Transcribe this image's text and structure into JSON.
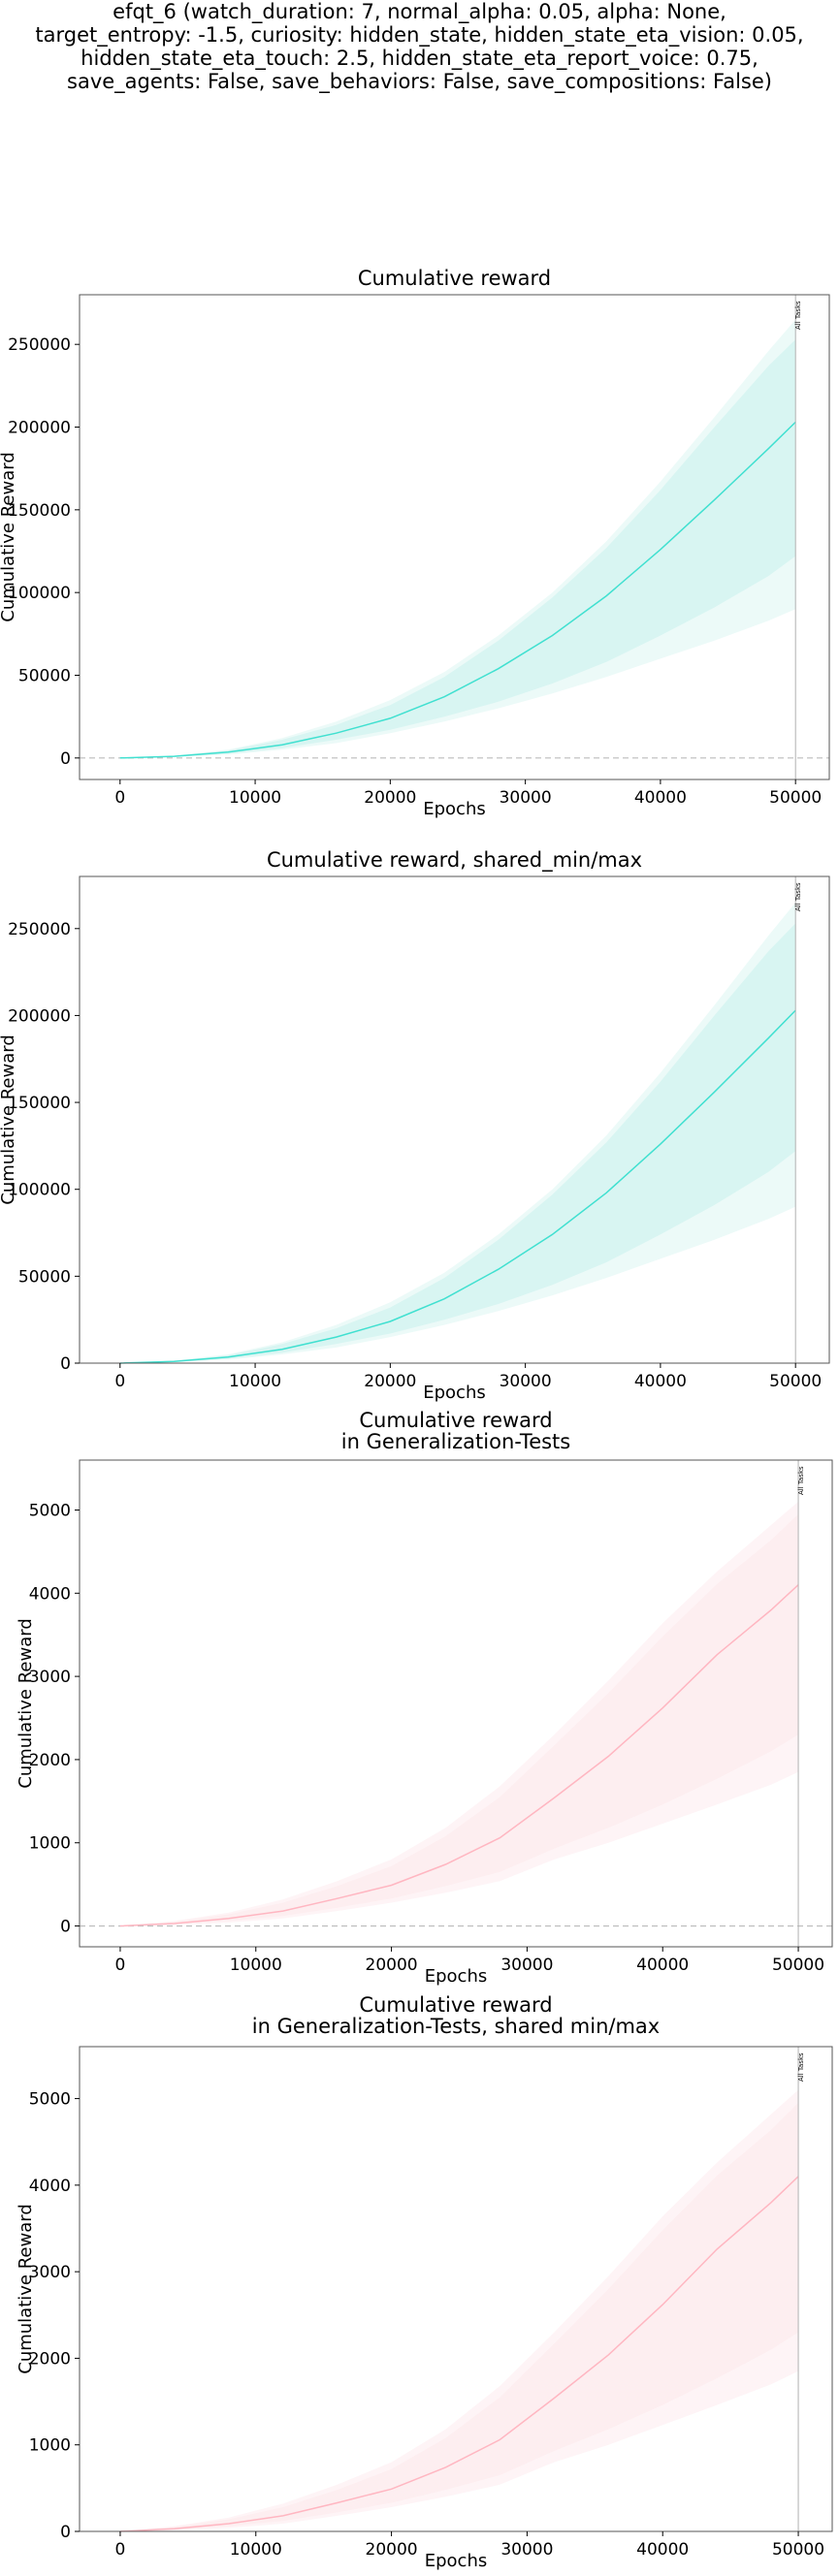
{
  "suptitle_lines": [
    "efqt_6 (watch_duration: 7, normal_alpha: 0.05, alpha: None,",
    "target_entropy: -1.5, curiosity: hidden_state, hidden_state_eta_vision: 0.05,",
    "hidden_state_eta_touch: 2.5, hidden_state_eta_report_voice: 0.75,",
    "save_agents: False, save_behaviors: False, save_compositions: False)"
  ],
  "colors": {
    "reward_line": "#40e0d0",
    "reward_band_inner": "#d8f5f2",
    "reward_band_outer": "#ecfaf8",
    "gen_line": "#ffb6c1",
    "gen_band_inner": "#fdeef0",
    "gen_band_outer": "#fef4f6",
    "vline": "#b0b0b0",
    "zero_line": "#bbbbbb"
  },
  "chart_data": [
    {
      "type": "line",
      "title": "Cumulative reward",
      "xlabel": "Epochs",
      "ylabel": "Cumulative Reward",
      "xlim": [
        -3000,
        52500
      ],
      "ylim": [
        -13000,
        280000
      ],
      "xticks": [
        0,
        10000,
        20000,
        30000,
        40000,
        50000
      ],
      "yticks": [
        0,
        50000,
        100000,
        150000,
        200000,
        250000
      ],
      "zero_line": true,
      "vline": {
        "x": 50000,
        "label": "All Tasks"
      },
      "grid": false,
      "x": [
        0,
        4000,
        8000,
        12000,
        16000,
        20000,
        24000,
        28000,
        32000,
        36000,
        40000,
        44000,
        48000,
        50000
      ],
      "series": [
        {
          "mean": [
            0,
            1000,
            3500,
            8000,
            15000,
            24000,
            37000,
            54000,
            74000,
            98000,
            126000,
            156000,
            187000,
            203000
          ],
          "inner_lower": [
            0,
            800,
            2500,
            6000,
            11000,
            17000,
            25000,
            34000,
            45000,
            58000,
            74000,
            91000,
            110000,
            122000
          ],
          "inner_upper": [
            0,
            1300,
            4500,
            11000,
            20000,
            32000,
            49000,
            71000,
            97000,
            127000,
            162000,
            200000,
            237000,
            253000
          ],
          "outer_lower": [
            0,
            600,
            2000,
            5000,
            9000,
            15000,
            22000,
            30000,
            39000,
            49000,
            60000,
            71000,
            83000,
            90000
          ],
          "outer_upper": [
            0,
            1500,
            5000,
            12000,
            22000,
            35000,
            52000,
            74000,
            100000,
            131000,
            167000,
            206000,
            246000,
            265000
          ]
        }
      ]
    },
    {
      "type": "line",
      "title": "Cumulative reward, shared_min/max",
      "xlabel": "Epochs",
      "ylabel": "Cumulative Reward",
      "xlim": [
        -3000,
        52500
      ],
      "ylim": [
        0,
        280000
      ],
      "xticks": [
        0,
        10000,
        20000,
        30000,
        40000,
        50000
      ],
      "yticks": [
        0,
        50000,
        100000,
        150000,
        200000,
        250000
      ],
      "zero_line": false,
      "vline": {
        "x": 50000,
        "label": "All Tasks"
      },
      "grid": false,
      "x": [
        0,
        4000,
        8000,
        12000,
        16000,
        20000,
        24000,
        28000,
        32000,
        36000,
        40000,
        44000,
        48000,
        50000
      ],
      "series": [
        {
          "mean": [
            0,
            1000,
            3500,
            8000,
            15000,
            24000,
            37000,
            54000,
            74000,
            98000,
            126000,
            156000,
            187000,
            203000
          ],
          "inner_lower": [
            0,
            800,
            2500,
            6000,
            11000,
            17000,
            25000,
            34000,
            45000,
            58000,
            74000,
            91000,
            110000,
            122000
          ],
          "inner_upper": [
            0,
            1300,
            4500,
            11000,
            20000,
            32000,
            49000,
            71000,
            97000,
            127000,
            162000,
            200000,
            237000,
            253000
          ],
          "outer_lower": [
            0,
            600,
            2000,
            5000,
            9000,
            15000,
            22000,
            30000,
            39000,
            49000,
            60000,
            71000,
            83000,
            90000
          ],
          "outer_upper": [
            0,
            1500,
            5000,
            12000,
            22000,
            35000,
            52000,
            74000,
            100000,
            131000,
            167000,
            206000,
            246000,
            265000
          ]
        }
      ]
    },
    {
      "type": "line",
      "title": "Cumulative reward\nin Generalization-Tests",
      "xlabel": "Epochs",
      "ylabel": "Cumulative Reward",
      "xlim": [
        -3000,
        52500
      ],
      "ylim": [
        -250,
        5600
      ],
      "xticks": [
        0,
        10000,
        20000,
        30000,
        40000,
        50000
      ],
      "yticks": [
        0,
        1000,
        2000,
        3000,
        4000,
        5000
      ],
      "zero_line": true,
      "vline": {
        "x": 50000,
        "label": "All Tasks"
      },
      "grid": false,
      "x": [
        0,
        4000,
        8000,
        12000,
        16000,
        20000,
        24000,
        28000,
        32000,
        36000,
        40000,
        44000,
        48000,
        50000
      ],
      "series": [
        {
          "mean": [
            0,
            30,
            90,
            180,
            330,
            490,
            740,
            1060,
            1540,
            2040,
            2620,
            3260,
            3800,
            4100
          ],
          "inner_lower": [
            0,
            20,
            60,
            120,
            220,
            330,
            480,
            650,
            930,
            1180,
            1460,
            1770,
            2100,
            2300
          ],
          "inner_upper": [
            0,
            50,
            140,
            280,
            480,
            720,
            1080,
            1550,
            2170,
            2800,
            3480,
            4110,
            4640,
            4950
          ],
          "outer_lower": [
            0,
            10,
            40,
            90,
            180,
            280,
            400,
            540,
            800,
            1000,
            1230,
            1460,
            1700,
            1850
          ],
          "outer_upper": [
            0,
            60,
            160,
            320,
            540,
            800,
            1180,
            1680,
            2300,
            2950,
            3640,
            4260,
            4820,
            5100
          ]
        }
      ]
    },
    {
      "type": "line",
      "title": "Cumulative reward\nin Generalization-Tests, shared min/max",
      "xlabel": "Epochs",
      "ylabel": "Cumulative Reward",
      "xlim": [
        -3000,
        52500
      ],
      "ylim": [
        0,
        5600
      ],
      "xticks": [
        0,
        10000,
        20000,
        30000,
        40000,
        50000
      ],
      "yticks": [
        0,
        1000,
        2000,
        3000,
        4000,
        5000
      ],
      "zero_line": false,
      "vline": {
        "x": 50000,
        "label": "All Tasks"
      },
      "grid": false,
      "x": [
        0,
        4000,
        8000,
        12000,
        16000,
        20000,
        24000,
        28000,
        32000,
        36000,
        40000,
        44000,
        48000,
        50000
      ],
      "series": [
        {
          "mean": [
            0,
            30,
            90,
            180,
            330,
            490,
            740,
            1060,
            1540,
            2040,
            2620,
            3260,
            3800,
            4100
          ],
          "inner_lower": [
            0,
            20,
            60,
            120,
            220,
            330,
            480,
            650,
            930,
            1180,
            1460,
            1770,
            2100,
            2300
          ],
          "inner_upper": [
            0,
            50,
            140,
            280,
            480,
            720,
            1080,
            1550,
            2170,
            2800,
            3480,
            4110,
            4640,
            4950
          ],
          "outer_lower": [
            0,
            10,
            40,
            90,
            180,
            280,
            400,
            540,
            800,
            1000,
            1230,
            1460,
            1700,
            1850
          ],
          "outer_upper": [
            0,
            60,
            160,
            320,
            540,
            800,
            1180,
            1680,
            2300,
            2950,
            3640,
            4260,
            4820,
            5100
          ]
        }
      ]
    }
  ]
}
